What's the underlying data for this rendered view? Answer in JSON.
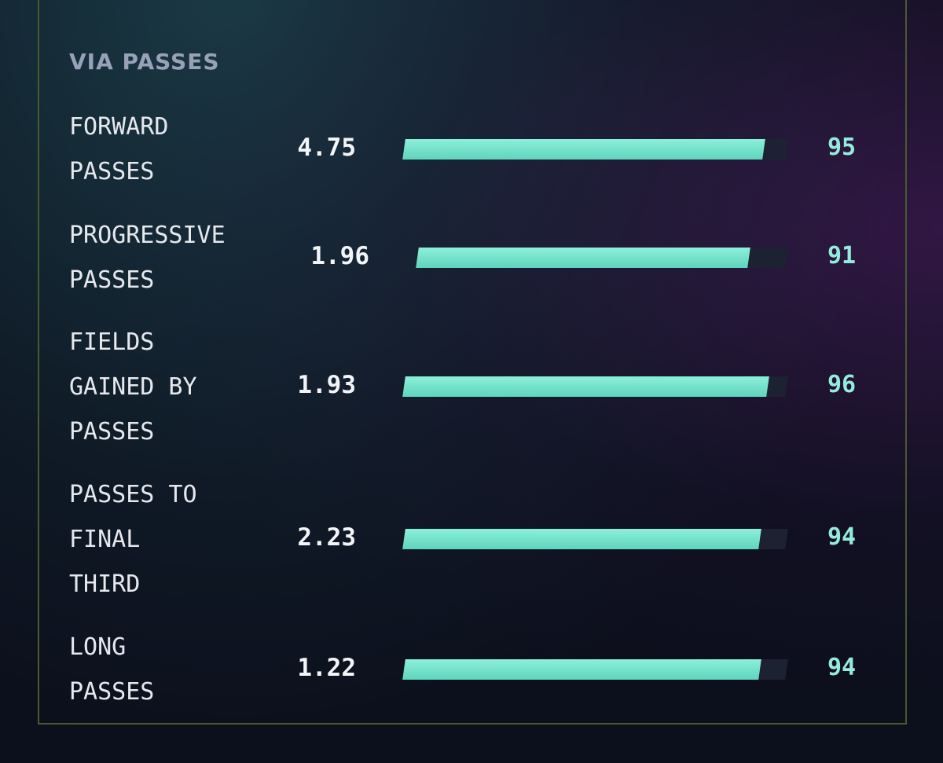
{
  "section": {
    "title": "VIA PASSES",
    "rows": [
      {
        "label": [
          "FORWARD",
          "PASSES"
        ],
        "value": 4.75,
        "percentile": 95
      },
      {
        "label": [
          "PROGRESSIVE",
          "PASSES"
        ],
        "value": 1.96,
        "percentile": 91
      },
      {
        "label": [
          "FIELDS",
          "GAINED BY",
          "PASSES"
        ],
        "value": 1.93,
        "percentile": 96
      },
      {
        "label": [
          "PASSES TO",
          "FINAL",
          "THIRD"
        ],
        "value": 2.23,
        "percentile": 94
      },
      {
        "label": [
          "LONG",
          "PASSES"
        ],
        "value": 1.22,
        "percentile": 94
      }
    ]
  }
}
